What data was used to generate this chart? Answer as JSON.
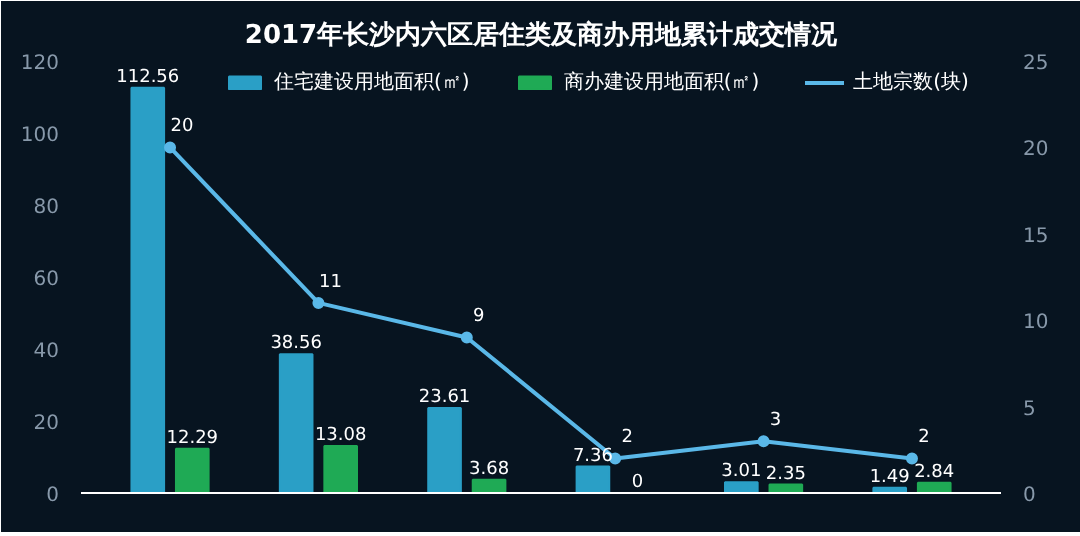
{
  "chart_data": {
    "type": "bar",
    "title": "2017年长沙内六区居住类及商办用地累计成交情况",
    "categories": [
      null,
      null,
      null,
      null,
      null,
      null
    ],
    "series": [
      {
        "name": "住宅建设用地面积(㎡)",
        "color": "#2a9fc6",
        "values": [
          112.56,
          38.56,
          23.61,
          7.36,
          3.01,
          1.49
        ]
      },
      {
        "name": "商办建设用地面积(㎡)",
        "color": "#1faa55",
        "values": [
          12.29,
          13.08,
          3.68,
          0,
          2.35,
          2.84
        ]
      },
      {
        "name": "土地宗数(块)",
        "type": "line",
        "axis": "y2",
        "color": "#5ab8e8",
        "marker": "circle",
        "values": [
          20,
          11,
          9,
          2,
          3,
          2
        ]
      }
    ],
    "ylim": [
      0,
      120
    ],
    "yticks": [
      0,
      20,
      40,
      60,
      80,
      100,
      120
    ],
    "y2lim": [
      0,
      25
    ],
    "y2ticks": [
      0,
      5,
      10,
      15,
      20,
      25
    ],
    "data_labels": true,
    "legend": "top",
    "grid": false
  }
}
